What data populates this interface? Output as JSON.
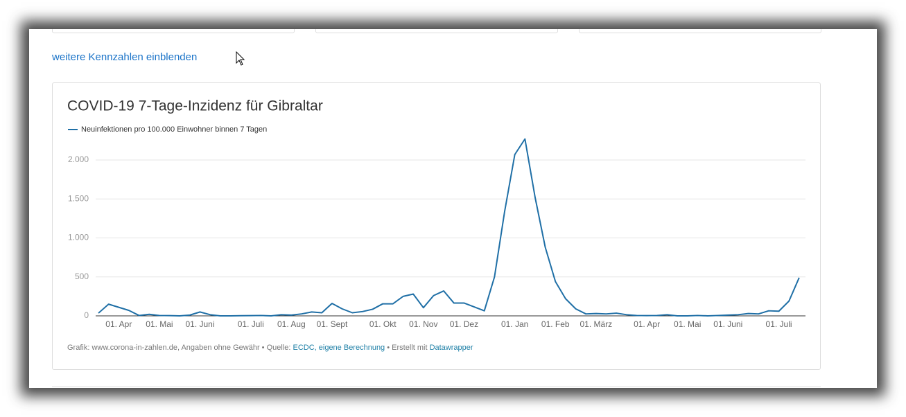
{
  "link": "weitere Kennzahlen einblenden",
  "chart_data": {
    "type": "line",
    "title": "COVID-19 7-Tage-Inzidenz für Gibraltar",
    "categories": [
      null,
      null,
      "01. Apr",
      null,
      null,
      null,
      "01. Mai",
      null,
      null,
      null,
      "01. Juni",
      null,
      null,
      null,
      null,
      "01. Juli",
      null,
      null,
      null,
      "01. Aug",
      null,
      null,
      null,
      "01. Sept",
      null,
      null,
      null,
      null,
      "01. Okt",
      null,
      null,
      null,
      "01. Nov",
      null,
      null,
      null,
      "01. Dez",
      null,
      null,
      null,
      null,
      "01. Jan",
      null,
      null,
      null,
      "01. Feb",
      null,
      null,
      null,
      "01. März",
      null,
      null,
      null,
      null,
      "01. Apr",
      null,
      null,
      null,
      "01. Mai",
      null,
      null,
      null,
      "01. Juni",
      null,
      null,
      null,
      null,
      "01. Juli",
      null,
      null
    ],
    "series": [
      {
        "name": "Neuinfektionen pro 100.000 Einwohner binnen 7 Tagen",
        "color": "#1f6fa6",
        "values": [
          35,
          150,
          110,
          70,
          5,
          20,
          5,
          3,
          0,
          10,
          50,
          15,
          0,
          0,
          2,
          3,
          5,
          0,
          15,
          10,
          25,
          50,
          40,
          160,
          90,
          40,
          55,
          85,
          155,
          155,
          250,
          280,
          105,
          260,
          320,
          165,
          165,
          115,
          65,
          500,
          1340,
          2070,
          2270,
          1520,
          880,
          440,
          220,
          90,
          25,
          30,
          25,
          35,
          15,
          5,
          3,
          5,
          15,
          0,
          0,
          5,
          0,
          5,
          10,
          15,
          30,
          25,
          65,
          60,
          190,
          490
        ]
      }
    ],
    "ylim": [
      0,
      2400
    ],
    "yticks": [
      0,
      500,
      {
        "value": 1000,
        "label": "1.000"
      },
      {
        "value": 1500,
        "label": "1.500"
      },
      {
        "value": 2000,
        "label": "2.000"
      }
    ],
    "grid": true
  },
  "footer": {
    "prefix": "Grafik: www.corona-in-zahlen.de, Angaben ohne Gewähr • Quelle:",
    "source_link": "ECDC, eigene Berechnung",
    "middle": "• Erstellt mit",
    "tool_link": "Datawrapper"
  }
}
